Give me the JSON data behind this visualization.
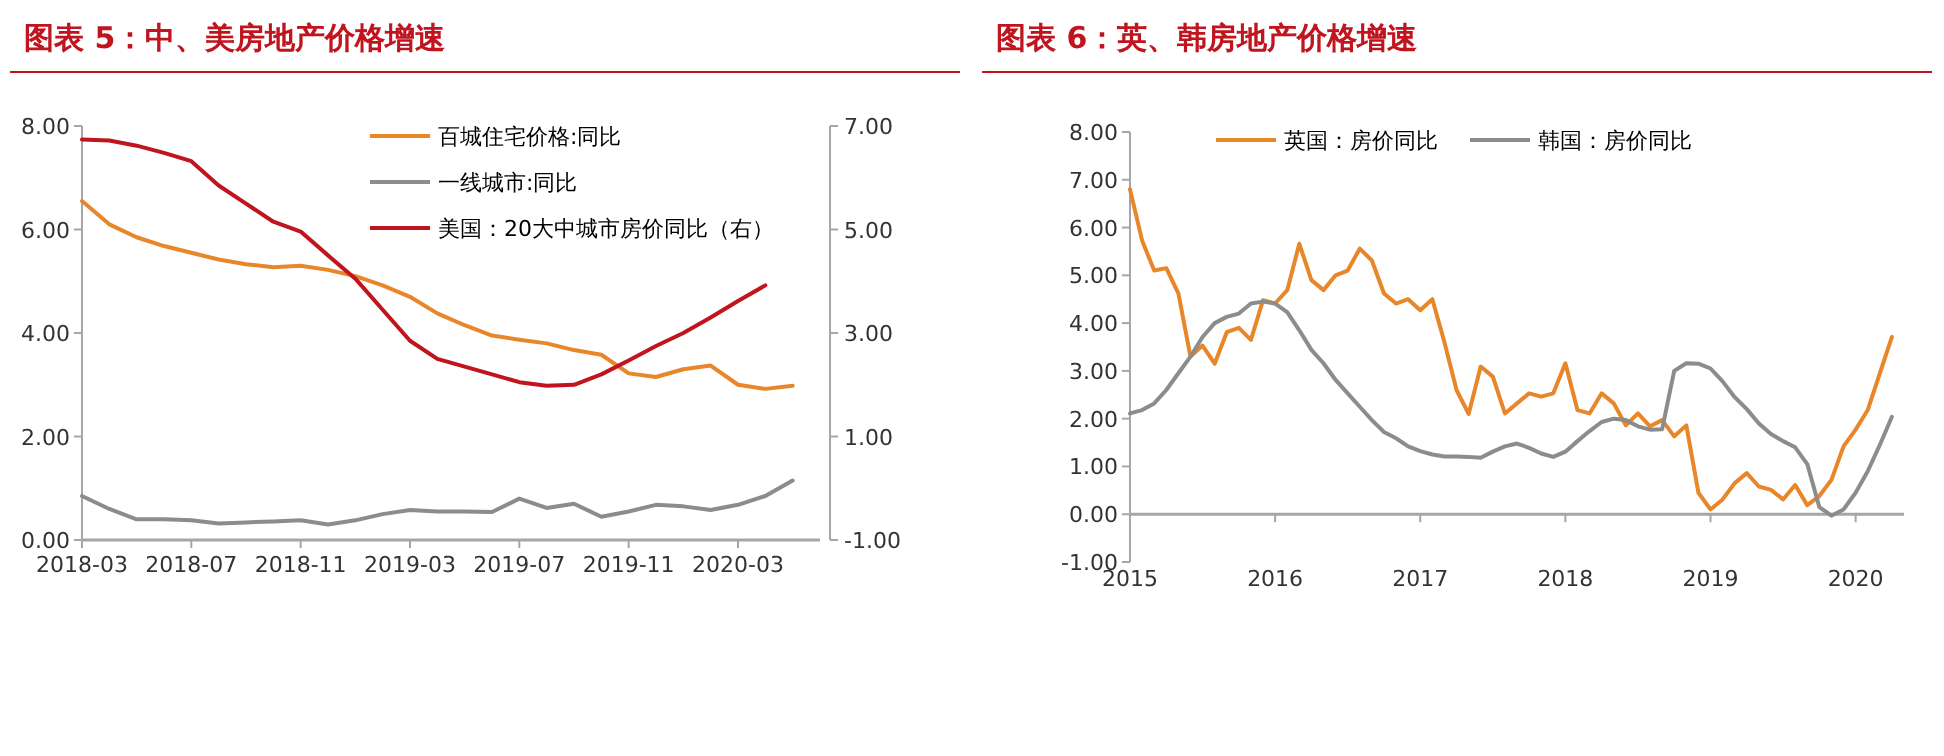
{
  "chart_data": [
    {
      "type": "line",
      "title": "图表 5：中、美房地产价格增速",
      "legend": "top",
      "xlim": [
        "2018-03",
        "2020-06"
      ],
      "xticks": [
        {
          "value": "2018-03",
          "label": "2018-03"
        },
        {
          "value": "2018-07",
          "label": "2018-07"
        },
        {
          "value": "2018-11",
          "label": "2018-11"
        },
        {
          "value": "2019-03",
          "label": "2019-03"
        },
        {
          "value": "2019-07",
          "label": "2019-07"
        },
        {
          "value": "2019-11",
          "label": "2019-11"
        },
        {
          "value": "2020-03",
          "label": "2020-03"
        }
      ],
      "ylim": [
        0,
        8
      ],
      "yticks": [
        {
          "value": 0,
          "label": "0.00"
        },
        {
          "value": 2,
          "label": "2.00"
        },
        {
          "value": 4,
          "label": "4.00"
        },
        {
          "value": 6,
          "label": "6.00"
        },
        {
          "value": 8,
          "label": "8.00"
        }
      ],
      "y2lim": [
        -1,
        7
      ],
      "y2ticks": [
        {
          "value": -1,
          "label": "-1.00"
        },
        {
          "value": 1,
          "label": "1.00"
        },
        {
          "value": 3,
          "label": "3.00"
        },
        {
          "value": 5,
          "label": "5.00"
        },
        {
          "value": 7,
          "label": "7.00"
        }
      ],
      "series": [
        {
          "name": "百城住宅价格:同比",
          "color": "#e8862a",
          "x": [
            "2018-03",
            "2018-04",
            "2018-05",
            "2018-06",
            "2018-07",
            "2018-08",
            "2018-09",
            "2018-10",
            "2018-11",
            "2018-12",
            "2019-01",
            "2019-02",
            "2019-03",
            "2019-04",
            "2019-05",
            "2019-06",
            "2019-07",
            "2019-08",
            "2019-09",
            "2019-10",
            "2019-11",
            "2019-12",
            "2020-01",
            "2020-02",
            "2020-03",
            "2020-04",
            "2020-05"
          ],
          "values": [
            6.55,
            6.1,
            5.85,
            5.68,
            5.55,
            5.42,
            5.33,
            5.27,
            5.3,
            5.22,
            5.1,
            4.92,
            4.7,
            4.38,
            4.15,
            3.95,
            3.87,
            3.8,
            3.67,
            3.58,
            3.22,
            3.15,
            3.3,
            3.37,
            3.0,
            2.92,
            2.98
          ]
        },
        {
          "name": "一线城市:同比",
          "color": "#8c8c8c",
          "x": [
            "2018-03",
            "2018-04",
            "2018-05",
            "2018-06",
            "2018-07",
            "2018-08",
            "2018-09",
            "2018-10",
            "2018-11",
            "2018-12",
            "2019-01",
            "2019-02",
            "2019-03",
            "2019-04",
            "2019-05",
            "2019-06",
            "2019-07",
            "2019-08",
            "2019-09",
            "2019-10",
            "2019-11",
            "2019-12",
            "2020-01",
            "2020-02",
            "2020-03",
            "2020-04",
            "2020-05"
          ],
          "values": [
            0.85,
            0.6,
            0.4,
            0.4,
            0.38,
            0.32,
            0.34,
            0.36,
            0.38,
            0.3,
            0.38,
            0.5,
            0.58,
            0.55,
            0.55,
            0.54,
            0.8,
            0.62,
            0.7,
            0.45,
            0.55,
            0.68,
            0.65,
            0.58,
            0.68,
            0.85,
            1.15
          ]
        },
        {
          "name": "美国：20大中城市房价同比（右）",
          "color": "#c0141e",
          "axis": "y2",
          "x": [
            "2018-03",
            "2018-04",
            "2018-05",
            "2018-06",
            "2018-07",
            "2018-08",
            "2018-09",
            "2018-10",
            "2018-11",
            "2018-12",
            "2019-01",
            "2019-02",
            "2019-03",
            "2019-04",
            "2019-05",
            "2019-06",
            "2019-07",
            "2019-08",
            "2019-09",
            "2019-10",
            "2019-11",
            "2019-12",
            "2020-01",
            "2020-02",
            "2020-03",
            "2020-04"
          ],
          "values": [
            6.74,
            6.72,
            6.62,
            6.48,
            6.32,
            5.85,
            5.5,
            5.15,
            4.96,
            4.5,
            4.05,
            3.45,
            2.85,
            2.5,
            2.35,
            2.2,
            2.05,
            1.98,
            2.0,
            2.2,
            2.47,
            2.75,
            3.0,
            3.3,
            3.62,
            3.92
          ]
        }
      ]
    },
    {
      "type": "line",
      "title": "图表 6：英、韩房地产价格增速",
      "legend": "top",
      "xlim": [
        "2015-01",
        "2020-05"
      ],
      "x": [
        "2015-01",
        "2015-02",
        "2015-03",
        "2015-04",
        "2015-05",
        "2015-06",
        "2015-07",
        "2015-08",
        "2015-09",
        "2015-10",
        "2015-11",
        "2015-12",
        "2016-01",
        "2016-02",
        "2016-03",
        "2016-04",
        "2016-05",
        "2016-06",
        "2016-07",
        "2016-08",
        "2016-09",
        "2016-10",
        "2016-11",
        "2016-12",
        "2017-01",
        "2017-02",
        "2017-03",
        "2017-04",
        "2017-05",
        "2017-06",
        "2017-07",
        "2017-08",
        "2017-09",
        "2017-10",
        "2017-11",
        "2017-12",
        "2018-01",
        "2018-02",
        "2018-03",
        "2018-04",
        "2018-05",
        "2018-06",
        "2018-07",
        "2018-08",
        "2018-09",
        "2018-10",
        "2018-11",
        "2018-12",
        "2019-01",
        "2019-02",
        "2019-03",
        "2019-04",
        "2019-05",
        "2019-06",
        "2019-07",
        "2019-08",
        "2019-09",
        "2019-10",
        "2019-11",
        "2019-12",
        "2020-01",
        "2020-02",
        "2020-03",
        "2020-04"
      ],
      "xticks": [
        {
          "value": "2015-01",
          "label": "2015"
        },
        {
          "value": "2016-01",
          "label": "2016"
        },
        {
          "value": "2017-01",
          "label": "2017"
        },
        {
          "value": "2018-01",
          "label": "2018"
        },
        {
          "value": "2019-01",
          "label": "2019"
        },
        {
          "value": "2020-01",
          "label": "2020"
        }
      ],
      "ylim": [
        -1,
        8
      ],
      "yticks": [
        {
          "value": -1,
          "label": "-1.00"
        },
        {
          "value": 0,
          "label": "0.00"
        },
        {
          "value": 1,
          "label": "1.00"
        },
        {
          "value": 2,
          "label": "2.00"
        },
        {
          "value": 3,
          "label": "3.00"
        },
        {
          "value": 4,
          "label": "4.00"
        },
        {
          "value": 5,
          "label": "5.00"
        },
        {
          "value": 6,
          "label": "6.00"
        },
        {
          "value": 7,
          "label": "7.00"
        },
        {
          "value": 8,
          "label": "8.00"
        }
      ],
      "series": [
        {
          "name": "英国：房价同比",
          "color": "#e8862a",
          "values": [
            6.8,
            5.73,
            5.1,
            5.15,
            4.62,
            3.3,
            3.53,
            3.15,
            3.81,
            3.9,
            3.65,
            4.48,
            4.41,
            4.69,
            5.66,
            4.9,
            4.69,
            5.0,
            5.1,
            5.56,
            5.31,
            4.62,
            4.41,
            4.5,
            4.27,
            4.5,
            3.6,
            2.6,
            2.1,
            3.09,
            2.88,
            2.11,
            2.32,
            2.53,
            2.46,
            2.53,
            3.16,
            2.18,
            2.11,
            2.53,
            2.32,
            1.86,
            2.11,
            1.84,
            1.97,
            1.63,
            1.86,
            0.45,
            0.1,
            0.31,
            0.65,
            0.86,
            0.58,
            0.51,
            0.31,
            0.61,
            0.19,
            0.38,
            0.72,
            1.42,
            1.77,
            2.18,
            2.95,
            3.71
          ]
        },
        {
          "name": "韩国：房价同比",
          "color": "#8c8c8c",
          "values": [
            2.11,
            2.18,
            2.32,
            2.6,
            2.95,
            3.3,
            3.71,
            4.0,
            4.13,
            4.2,
            4.41,
            4.45,
            4.41,
            4.23,
            3.85,
            3.44,
            3.16,
            2.81,
            2.53,
            2.25,
            1.97,
            1.72,
            1.59,
            1.42,
            1.32,
            1.25,
            1.21,
            1.21,
            1.2,
            1.18,
            1.31,
            1.42,
            1.48,
            1.39,
            1.27,
            1.2,
            1.31,
            1.53,
            1.74,
            1.93,
            2.0,
            1.97,
            1.84,
            1.77,
            1.78,
            3.0,
            3.16,
            3.15,
            3.05,
            2.78,
            2.45,
            2.2,
            1.9,
            1.68,
            1.53,
            1.4,
            1.05,
            0.15,
            -0.03,
            0.1,
            0.45,
            0.9,
            1.45,
            2.04
          ]
        }
      ]
    }
  ]
}
